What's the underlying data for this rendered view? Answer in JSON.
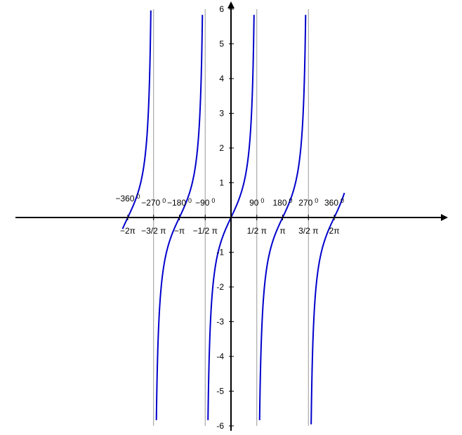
{
  "chart_data": {
    "type": "line",
    "function": "tan(x)",
    "xlim": [
      -6.6,
      6.9
    ],
    "ylim": [
      -6,
      6
    ],
    "grid": false,
    "y_ticks": [
      {
        "value": 6,
        "label": "6"
      },
      {
        "value": 5,
        "label": "5"
      },
      {
        "value": 4,
        "label": "4"
      },
      {
        "value": 3,
        "label": "3"
      },
      {
        "value": 2,
        "label": "2"
      },
      {
        "value": 1,
        "label": "1"
      },
      {
        "value": -1,
        "label": "-1"
      },
      {
        "value": -2,
        "label": "-2"
      },
      {
        "value": -3,
        "label": "-3"
      },
      {
        "value": -4,
        "label": "-4"
      },
      {
        "value": -5,
        "label": "-5"
      },
      {
        "value": -6,
        "label": "-6"
      }
    ],
    "x_ticks": [
      {
        "value": -6.2832,
        "rad_label": "−2π",
        "deg_label": "−360",
        "deg_sup": "0"
      },
      {
        "value": -4.7124,
        "rad_label": "−3/2 π",
        "deg_label": "−270",
        "deg_sup": "0"
      },
      {
        "value": -3.1416,
        "rad_label": "−π",
        "deg_label": "−180",
        "deg_sup": "0"
      },
      {
        "value": -1.5708,
        "rad_label": "−1/2 π",
        "deg_label": "−90",
        "deg_sup": "0"
      },
      {
        "value": 1.5708,
        "rad_label": "1/2 π",
        "deg_label": "90",
        "deg_sup": "0"
      },
      {
        "value": 3.1416,
        "rad_label": "π",
        "deg_label": "180",
        "deg_sup": "0"
      },
      {
        "value": 4.7124,
        "rad_label": "3/2 π",
        "deg_label": "270",
        "deg_sup": "0"
      },
      {
        "value": 6.2832,
        "rad_label": "2π",
        "deg_label": "360",
        "deg_sup": "0"
      }
    ],
    "asymptotes": [
      -4.7124,
      -1.5708,
      1.5708,
      4.7124
    ],
    "colors": {
      "curve": "#0000cc",
      "asymptote": "#999999",
      "axis": "#000000"
    }
  }
}
